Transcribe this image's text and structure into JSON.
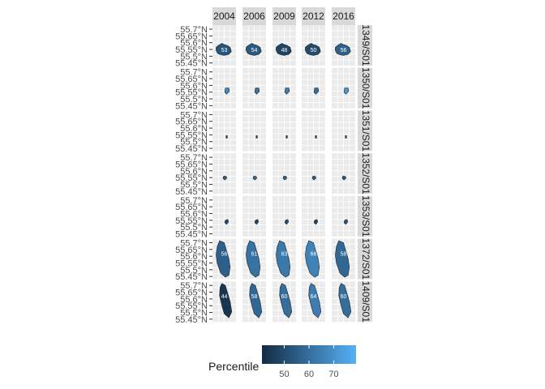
{
  "chart_data": {
    "type": "faceted-map",
    "columns": [
      "2004",
      "2006",
      "2009",
      "2012",
      "2016"
    ],
    "rows": [
      "1349/S01",
      "1350/S01",
      "1351/S01",
      "1352/S01",
      "1353/S01",
      "1372/S01",
      "1409/S01"
    ],
    "y_ticks": [
      "55.7°N",
      "55.65°N",
      "55.6°N",
      "55.55°N",
      "55.5°N",
      "55.45°N"
    ],
    "y_tick_values": [
      55.7,
      55.65,
      55.6,
      55.55,
      55.5,
      55.45
    ],
    "ylim": [
      55.43,
      55.73
    ],
    "cells": [
      [
        "53",
        "54",
        "48",
        "50",
        "56"
      ],
      [
        "",
        "",
        "",
        "",
        ""
      ],
      [
        "",
        "",
        "",
        "",
        ""
      ],
      [
        "",
        "",
        "",
        "",
        ""
      ],
      [
        "",
        "",
        "",
        "",
        ""
      ],
      [
        "56",
        "61",
        "63",
        "66",
        "58"
      ],
      [
        "44",
        "58",
        "60",
        "64",
        "60"
      ]
    ],
    "cell_values": [
      [
        53,
        54,
        48,
        50,
        56
      ],
      [
        68,
        62,
        64,
        60,
        72
      ],
      [
        45,
        45,
        45,
        45,
        45
      ],
      [
        55,
        58,
        57,
        56,
        54
      ],
      [
        50,
        48,
        52,
        49,
        53
      ],
      [
        56,
        61,
        63,
        66,
        58
      ],
      [
        44,
        58,
        60,
        64,
        60
      ]
    ],
    "legend": {
      "title": "Percentile",
      "ticks": [
        "50",
        "60",
        "70"
      ],
      "tick_values": [
        50,
        60,
        70
      ],
      "range": [
        41,
        79
      ],
      "color_low": "#132B43",
      "color_high": "#56B1F7",
      "placement": "bottom"
    },
    "panel_background": "#ebebeb",
    "grid": true
  }
}
